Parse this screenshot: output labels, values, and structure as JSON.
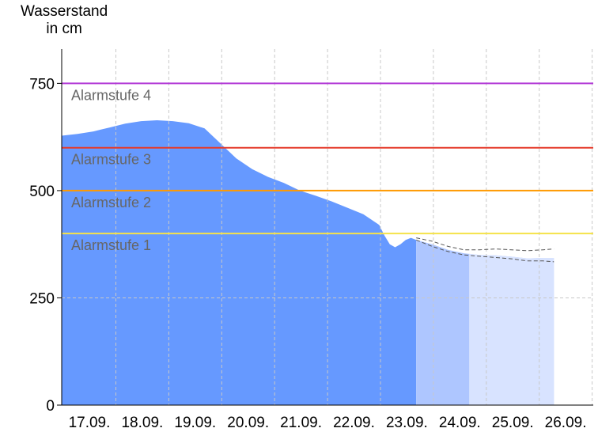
{
  "chart_data": {
    "type": "area",
    "ylabel_line1": "Wasserstand",
    "ylabel_line2": "in cm",
    "ylim": [
      0,
      830
    ],
    "yticks": [
      0,
      250,
      500,
      750
    ],
    "grid": true,
    "xticks": [
      "17.09.",
      "18.09.",
      "19.09.",
      "20.09.",
      "21.09.",
      "22.09.",
      "23.09.",
      "24.09.",
      "25.09.",
      "26.09."
    ],
    "thresholds": [
      {
        "label": "Alarmstufe 1",
        "value": 400,
        "color": "#f5e24a"
      },
      {
        "label": "Alarmstufe 2",
        "value": 500,
        "color": "#ff9900"
      },
      {
        "label": "Alarmstufe 3",
        "value": 600,
        "color": "#e53a2a"
      },
      {
        "label": "Alarmstufe 4",
        "value": 750,
        "color": "#b23ad6"
      }
    ],
    "measured": {
      "color": "#6699ff",
      "x": [
        0,
        0.3,
        0.6,
        0.9,
        1.2,
        1.5,
        1.8,
        2.1,
        2.4,
        2.7,
        3.0,
        3.3,
        3.6,
        3.9,
        4.2,
        4.5,
        4.8,
        5.1,
        5.4,
        5.7,
        6.0,
        6.1,
        6.2,
        6.3,
        6.4,
        6.5,
        6.6,
        6.7
      ],
      "y": [
        628,
        632,
        638,
        647,
        656,
        662,
        664,
        662,
        657,
        645,
        610,
        575,
        550,
        532,
        518,
        500,
        488,
        475,
        460,
        445,
        420,
        395,
        375,
        368,
        375,
        385,
        390,
        385
      ]
    },
    "forecast_near": {
      "color": "#aec6ff",
      "x": [
        6.7,
        7.0,
        7.3,
        7.6,
        7.9,
        8.2,
        8.5,
        8.8,
        9.1,
        9.3
      ],
      "y": [
        385,
        375,
        362,
        354,
        350,
        349,
        346,
        342,
        343,
        343
      ]
    },
    "forecast_far_start": 7.7,
    "forecast_far_color": "#d8e3ff",
    "forecast_upper": {
      "x": [
        6.7,
        7.0,
        7.3,
        7.6,
        7.9,
        8.2,
        8.5,
        8.8,
        9.1,
        9.3
      ],
      "y": [
        390,
        382,
        370,
        362,
        362,
        364,
        362,
        360,
        362,
        364
      ]
    },
    "forecast_lower": {
      "x": [
        6.7,
        7.0,
        7.3,
        7.6,
        7.9,
        8.2,
        8.5,
        8.8,
        9.1,
        9.3
      ],
      "y": [
        385,
        370,
        358,
        350,
        347,
        344,
        341,
        336,
        336,
        334
      ]
    }
  }
}
